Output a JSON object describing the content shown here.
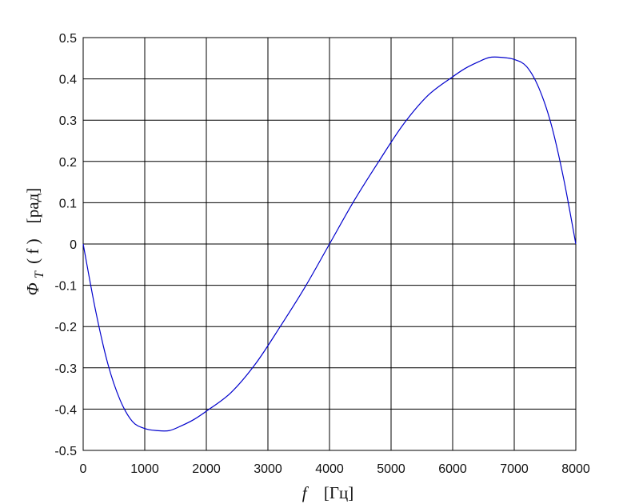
{
  "chart_data": {
    "type": "line",
    "title": "",
    "xlabel": {
      "symbol": "f",
      "unit": "[Гц]"
    },
    "ylabel": {
      "symbol": "Φ",
      "subscript": "T",
      "arg": "( f )",
      "unit": "[рад]"
    },
    "xlim": [
      0,
      8000
    ],
    "ylim": [
      -0.5,
      0.5
    ],
    "xticks": [
      0,
      1000,
      2000,
      3000,
      4000,
      5000,
      6000,
      7000,
      8000
    ],
    "yticks": [
      0.5,
      0.4,
      0.3,
      0.2,
      0.1,
      0,
      -0.1,
      -0.2,
      -0.3,
      -0.4,
      -0.5
    ],
    "ytick_labels": [
      "0.5",
      "0.4",
      "0.3",
      "0.2",
      "0.1",
      "0",
      "-0.1",
      "-0.2",
      "-0.3",
      "-0.4",
      "-0.5"
    ],
    "grid": true,
    "series": [
      {
        "color": "#0000cc",
        "x": [
          0,
          200,
          400,
          600,
          800,
          1000,
          1200,
          1400,
          1600,
          1800,
          2000,
          2400,
          2800,
          3200,
          3600,
          4000,
          4400,
          4800,
          5200,
          5600,
          6000,
          6200,
          6400,
          6600,
          6800,
          7000,
          7200,
          7400,
          7600,
          7800,
          8000
        ],
        "y": [
          0,
          -0.16,
          -0.29,
          -0.378,
          -0.43,
          -0.447,
          -0.452,
          -0.452,
          -0.44,
          -0.425,
          -0.405,
          -0.36,
          -0.29,
          -0.2,
          -0.105,
          0,
          0.105,
          0.2,
          0.29,
          0.36,
          0.405,
          0.425,
          0.44,
          0.452,
          0.452,
          0.447,
          0.43,
          0.378,
          0.29,
          0.16,
          0
        ]
      }
    ]
  }
}
